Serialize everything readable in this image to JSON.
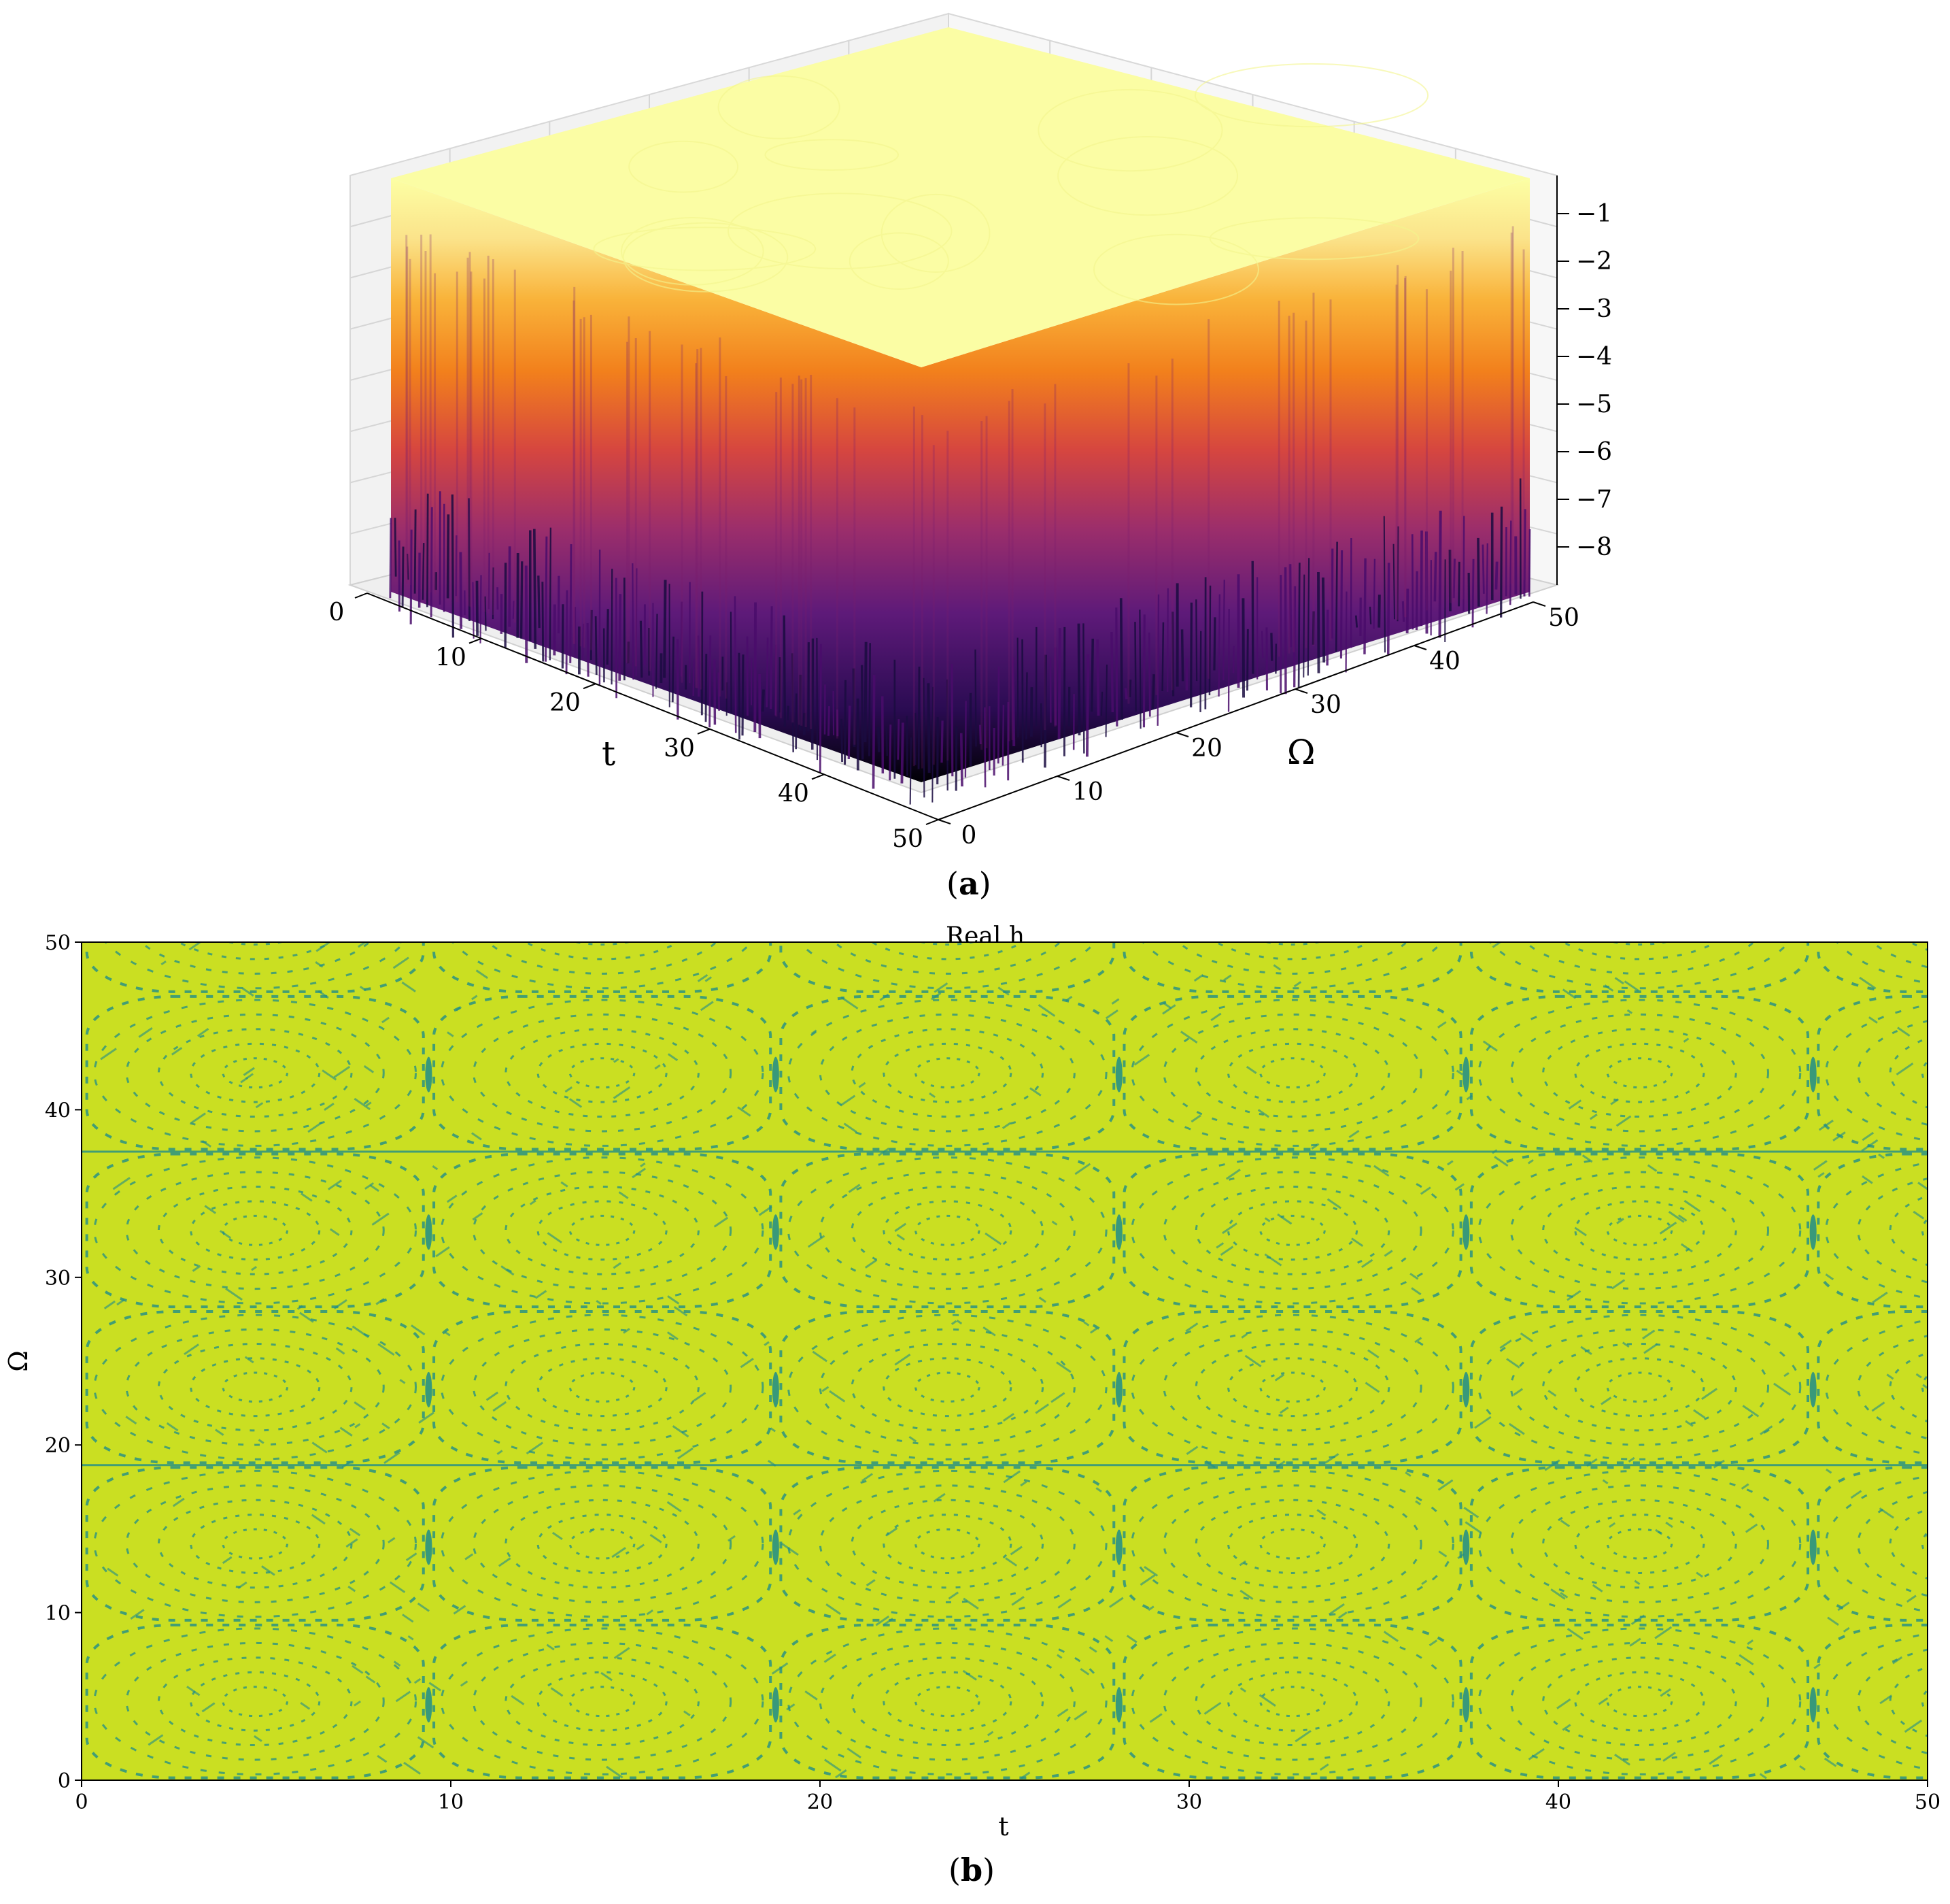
{
  "figure": {
    "caption_a": "a",
    "caption_b": "b"
  },
  "chart_data": [
    {
      "type": "surface",
      "panel": "a",
      "title": "",
      "xlabel": "t",
      "ylabel": "Ω",
      "zlabel": "",
      "x_ticks": [
        0,
        10,
        20,
        30,
        40,
        50
      ],
      "y_ticks": [
        0,
        10,
        20,
        30,
        40,
        50
      ],
      "z_ticks": [
        "−1",
        "−2",
        "−3",
        "−4",
        "−5",
        "−6",
        "−7",
        "−8"
      ],
      "xlim": [
        0,
        50
      ],
      "ylim": [
        0,
        50
      ],
      "zlim": [
        -8.8,
        -0.2
      ],
      "colormap": "inferno",
      "grid": true
    },
    {
      "type": "heatmap",
      "panel": "b",
      "title": "Real h",
      "xlabel": "t",
      "ylabel": "Ω",
      "x_ticks": [
        0,
        10,
        20,
        30,
        40,
        50
      ],
      "y_ticks": [
        0,
        10,
        20,
        30,
        40,
        50
      ],
      "xlim": [
        0,
        50
      ],
      "ylim": [
        0,
        50
      ],
      "colormap": "viridis",
      "background_color": "#cadf22",
      "feature_color": "#1f8d8a",
      "line_levels_omega": [
        18.8,
        37.5
      ],
      "line_levels_t": [
        9.4,
        18.8,
        28.1,
        37.5,
        46.9
      ],
      "grid": false
    }
  ]
}
